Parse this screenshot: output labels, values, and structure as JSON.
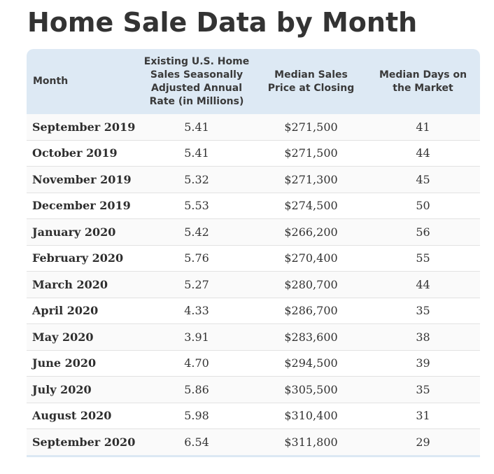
{
  "page": {
    "title": "Home Sale Data by Month"
  },
  "chart_data": {
    "type": "table",
    "title": "Home Sale Data by Month",
    "columns": [
      "Month",
      "Existing U.S. Home Sales Seasonally Adjusted Annual Rate (in Millions)",
      "Median Sales Price at Closing",
      "Median Days on the Market"
    ],
    "rows": [
      [
        "September 2019",
        "5.41",
        "$271,500",
        "41"
      ],
      [
        "October 2019",
        "5.41",
        "$271,500",
        "44"
      ],
      [
        "November 2019",
        "5.32",
        "$271,300",
        "45"
      ],
      [
        "December 2019",
        "5.53",
        "$274,500",
        "50"
      ],
      [
        "January 2020",
        "5.42",
        "$266,200",
        "56"
      ],
      [
        "February 2020",
        "5.76",
        "$270,400",
        "55"
      ],
      [
        "March 2020",
        "5.27",
        "$280,700",
        "44"
      ],
      [
        "April 2020",
        "4.33",
        "$286,700",
        "35"
      ],
      [
        "May 2020",
        "3.91",
        "$283,600",
        "38"
      ],
      [
        "June 2020",
        "4.70",
        "$294,500",
        "39"
      ],
      [
        "July 2020",
        "5.86",
        "$305,500",
        "35"
      ],
      [
        "August 2020",
        "5.98",
        "$310,400",
        "31"
      ],
      [
        "September 2020",
        "6.54",
        "$311,800",
        "29"
      ]
    ]
  },
  "colors": {
    "header_background": "#dde9f4",
    "title_text": "#333333",
    "row_divider": "#e2e2e2",
    "striped_row": "#fafafa"
  }
}
